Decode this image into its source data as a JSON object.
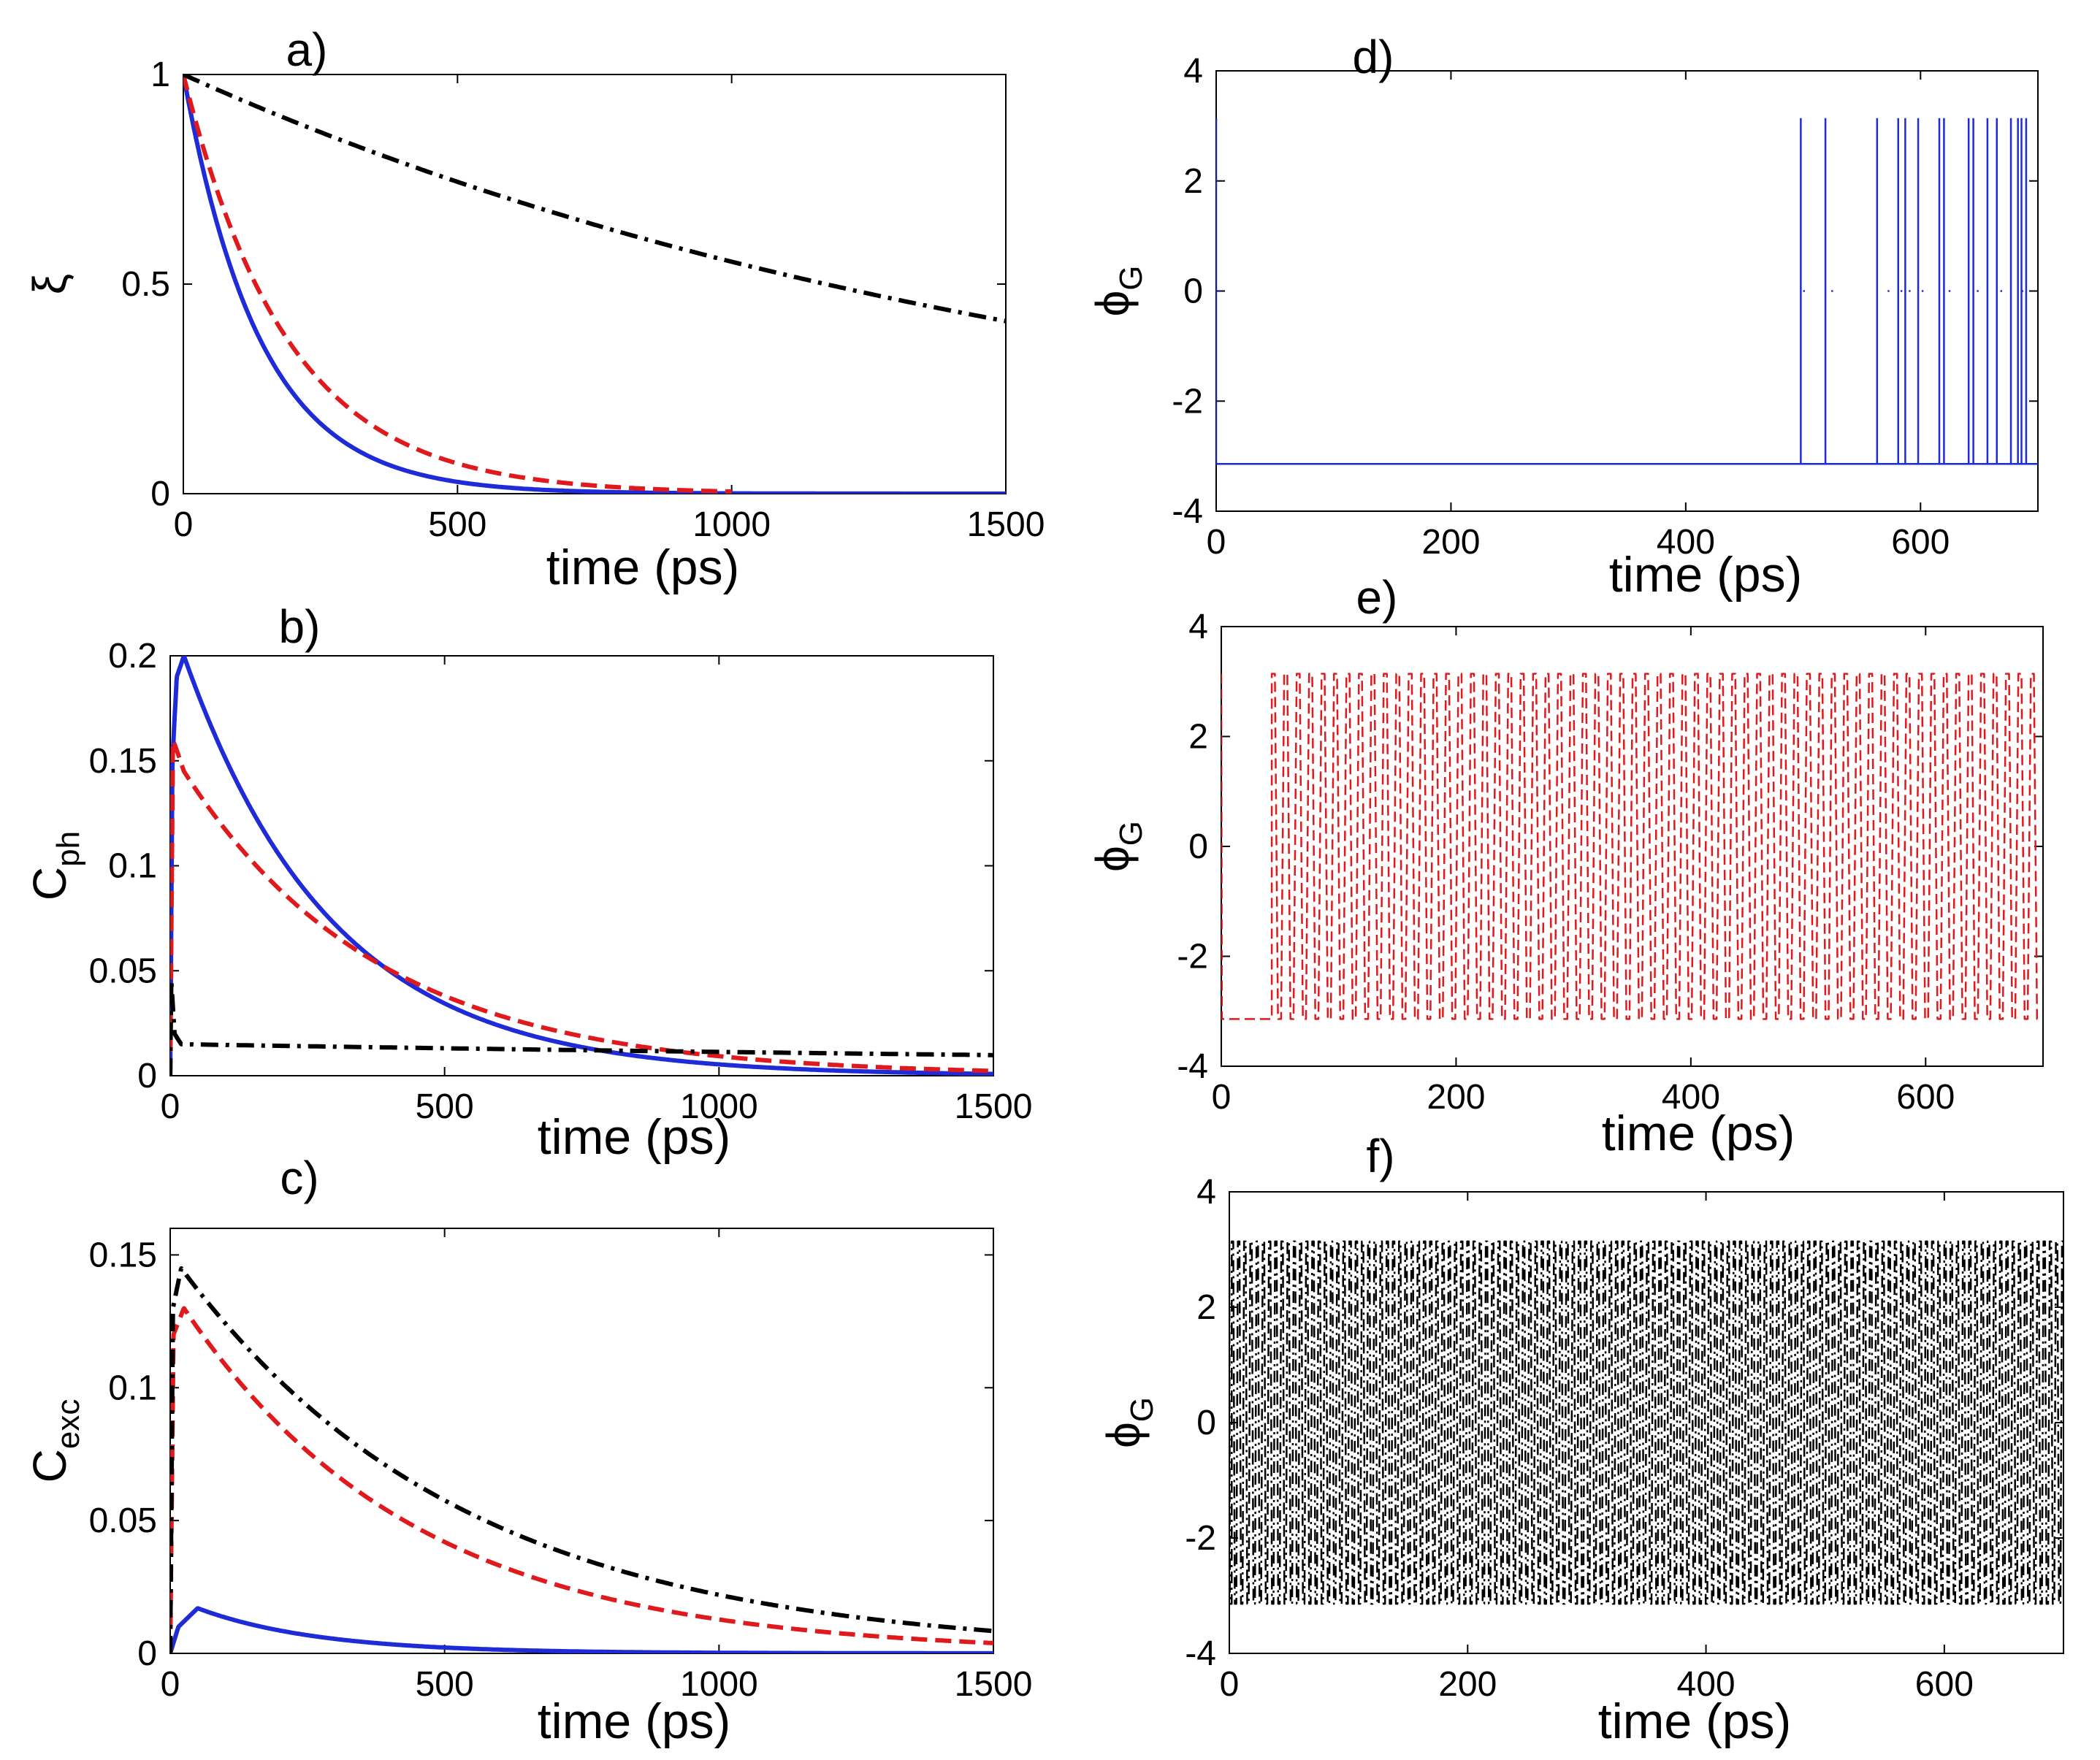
{
  "chart_data": [
    {
      "id": "a",
      "type": "line",
      "panel_label": "a)",
      "xlabel": "time (ps)",
      "ylabel_main": "ξ",
      "ylabel_sub": "",
      "xlim": [
        0,
        1500
      ],
      "ylim": [
        0,
        1
      ],
      "xticks": [
        0,
        500,
        1000,
        1500
      ],
      "yticks": [
        0,
        0.5,
        1
      ],
      "xtick_labels": [
        "0",
        "500",
        "1000",
        "1500"
      ],
      "ytick_labels": [
        "0",
        "0.5",
        "1"
      ],
      "series": [
        {
          "name": "blue-solid",
          "color": "#1f2bd6",
          "style": "solid",
          "kind": "exp",
          "x": [
            0,
            1500
          ],
          "y0": 1.0,
          "tau": 140
        },
        {
          "name": "red-dashed",
          "color": "#e0191c",
          "style": "dashed",
          "kind": "exp",
          "x": [
            0,
            1000
          ],
          "y0": 1.0,
          "tau": 190
        },
        {
          "name": "black-dashdot",
          "color": "#000000",
          "style": "dashdot",
          "kind": "exp",
          "x": [
            0,
            1500
          ],
          "y0": 1.0,
          "tau": 1690
        }
      ]
    },
    {
      "id": "b",
      "type": "line",
      "panel_label": "b)",
      "xlabel": "time (ps)",
      "ylabel_main": "C",
      "ylabel_sub": "ph",
      "xlim": [
        0,
        1500
      ],
      "ylim": [
        0,
        0.2
      ],
      "xticks": [
        0,
        500,
        1000,
        1500
      ],
      "yticks": [
        0,
        0.05,
        0.1,
        0.15,
        0.2
      ],
      "xtick_labels": [
        "0",
        "500",
        "1000",
        "1500"
      ],
      "ytick_labels": [
        "0",
        "0.05",
        "0.1",
        "0.15",
        "0.2"
      ],
      "series": [
        {
          "name": "blue-solid",
          "color": "#1f2bd6",
          "style": "solid",
          "kind": "rise-decay",
          "x": [
            0,
            1500
          ],
          "rise": [
            0,
            0.15,
            0.19,
            0.2
          ],
          "rise_t": [
            0,
            4,
            12,
            25
          ],
          "peak": 0.2,
          "tpeak": 25,
          "tau": 270,
          "floor": 0.0
        },
        {
          "name": "red-dashed",
          "color": "#e0191c",
          "style": "dashed",
          "kind": "rise-decay",
          "x": [
            0,
            1500
          ],
          "rise": [
            0,
            0.16,
            0.155,
            0.145
          ],
          "rise_t": [
            0,
            5,
            12,
            25
          ],
          "peak": 0.145,
          "tpeak": 25,
          "tau": 355,
          "floor": 0.0
        },
        {
          "name": "black-dashdot",
          "color": "#000000",
          "style": "dashdot",
          "kind": "rise-decay",
          "x": [
            0,
            1500
          ],
          "rise": [
            0,
            0.045,
            0.02,
            0.015
          ],
          "rise_t": [
            0,
            2,
            8,
            20
          ],
          "peak": 0.015,
          "tpeak": 20,
          "tau": 3500,
          "floor": 0.0
        }
      ]
    },
    {
      "id": "c",
      "type": "line",
      "panel_label": "c)",
      "xlabel": "time (ps)",
      "ylabel_main": "C",
      "ylabel_sub": "exc",
      "xlim": [
        0,
        1500
      ],
      "ylim": [
        0,
        0.16
      ],
      "xticks": [
        0,
        500,
        1000,
        1500
      ],
      "yticks": [
        0,
        0.05,
        0.1,
        0.15
      ],
      "xtick_labels": [
        "0",
        "500",
        "1000",
        "1500"
      ],
      "ytick_labels": [
        "0",
        "0.05",
        "0.1",
        "0.15"
      ],
      "series": [
        {
          "name": "blue-solid",
          "color": "#1f2bd6",
          "style": "solid",
          "kind": "rise-decay",
          "x": [
            0,
            1500
          ],
          "rise": [
            0,
            0.01,
            0.017
          ],
          "rise_t": [
            0,
            15,
            50
          ],
          "peak": 0.017,
          "tpeak": 50,
          "tau": 220,
          "floor": 0.0
        },
        {
          "name": "red-dashed",
          "color": "#e0191c",
          "style": "dashed",
          "kind": "rise-decay",
          "x": [
            0,
            1500
          ],
          "rise": [
            0,
            0.12,
            0.13
          ],
          "rise_t": [
            0,
            6,
            25
          ],
          "peak": 0.13,
          "tpeak": 25,
          "tau": 420,
          "floor": 0.0
        },
        {
          "name": "black-dashdot",
          "color": "#000000",
          "style": "dashdot",
          "kind": "rise-decay",
          "x": [
            0,
            1500
          ],
          "rise": [
            0,
            0.13,
            0.145
          ],
          "rise_t": [
            0,
            5,
            20
          ],
          "peak": 0.145,
          "tpeak": 20,
          "tau": 520,
          "floor": 0.0
        }
      ]
    },
    {
      "id": "d",
      "type": "line",
      "panel_label": "d)",
      "xlabel": "time (ps)",
      "ylabel_main": "ϕ",
      "ylabel_sub": "G",
      "xlim": [
        0,
        700
      ],
      "ylim": [
        -4,
        4
      ],
      "xticks": [
        0,
        200,
        400,
        600
      ],
      "yticks": [
        -4,
        -2,
        0,
        2,
        4
      ],
      "xtick_labels": [
        "0",
        "200",
        "400",
        "600"
      ],
      "ytick_labels": [
        "-4",
        "-2",
        "0",
        "2",
        "4"
      ],
      "series": [
        {
          "name": "blue-solid",
          "color": "#1f2bd6",
          "style": "solid",
          "kind": "phase-jumps",
          "x_end": 700,
          "base": -3.1416,
          "top": 3.1416,
          "jumps_full": [
            498,
            519,
            563,
            581,
            587,
            598,
            616,
            620,
            641,
            645,
            657,
            665,
            677,
            683,
            686,
            690
          ],
          "jumps_zero": [
            2,
            500,
            524,
            572,
            583,
            590,
            601,
            624,
            648,
            668,
            686
          ]
        }
      ]
    },
    {
      "id": "e",
      "type": "line",
      "panel_label": "e)",
      "xlabel": "time (ps)",
      "ylabel_main": "ϕ",
      "ylabel_sub": "G",
      "xlim": [
        0,
        700
      ],
      "ylim": [
        -4,
        4
      ],
      "xticks": [
        0,
        200,
        400,
        600
      ],
      "yticks": [
        -4,
        -2,
        0,
        2,
        4
      ],
      "xtick_labels": [
        "0",
        "200",
        "400",
        "600"
      ],
      "ytick_labels": [
        "-4",
        "-2",
        "0",
        "2",
        "4"
      ],
      "series": [
        {
          "name": "red-dashed",
          "color": "#e0191c",
          "style": "dashed",
          "kind": "dense-phase",
          "x_start": 43,
          "x_end": 700,
          "spacing": 5.3,
          "base": -3.1416,
          "top": 3.1416,
          "zero_line_at": 2
        }
      ]
    },
    {
      "id": "f",
      "type": "line",
      "panel_label": "f)",
      "xlabel": "time (ps)",
      "ylabel_main": "ϕ",
      "ylabel_sub": "G",
      "xlim": [
        0,
        700
      ],
      "ylim": [
        -4,
        4
      ],
      "xticks": [
        0,
        200,
        400,
        600
      ],
      "yticks": [
        -4,
        -2,
        0,
        2,
        4
      ],
      "xtick_labels": [
        "0",
        "200",
        "400",
        "600"
      ],
      "ytick_labels": [
        "-4",
        "-2",
        "0",
        "2",
        "4"
      ],
      "series": [
        {
          "name": "black-dashdot",
          "color": "#000000",
          "style": "dashdot",
          "kind": "dense-phase",
          "x_start": 2,
          "x_end": 700,
          "spacing": 2.6,
          "base": -3.1416,
          "top": 3.1416,
          "zero_line_at": 0
        }
      ]
    }
  ]
}
